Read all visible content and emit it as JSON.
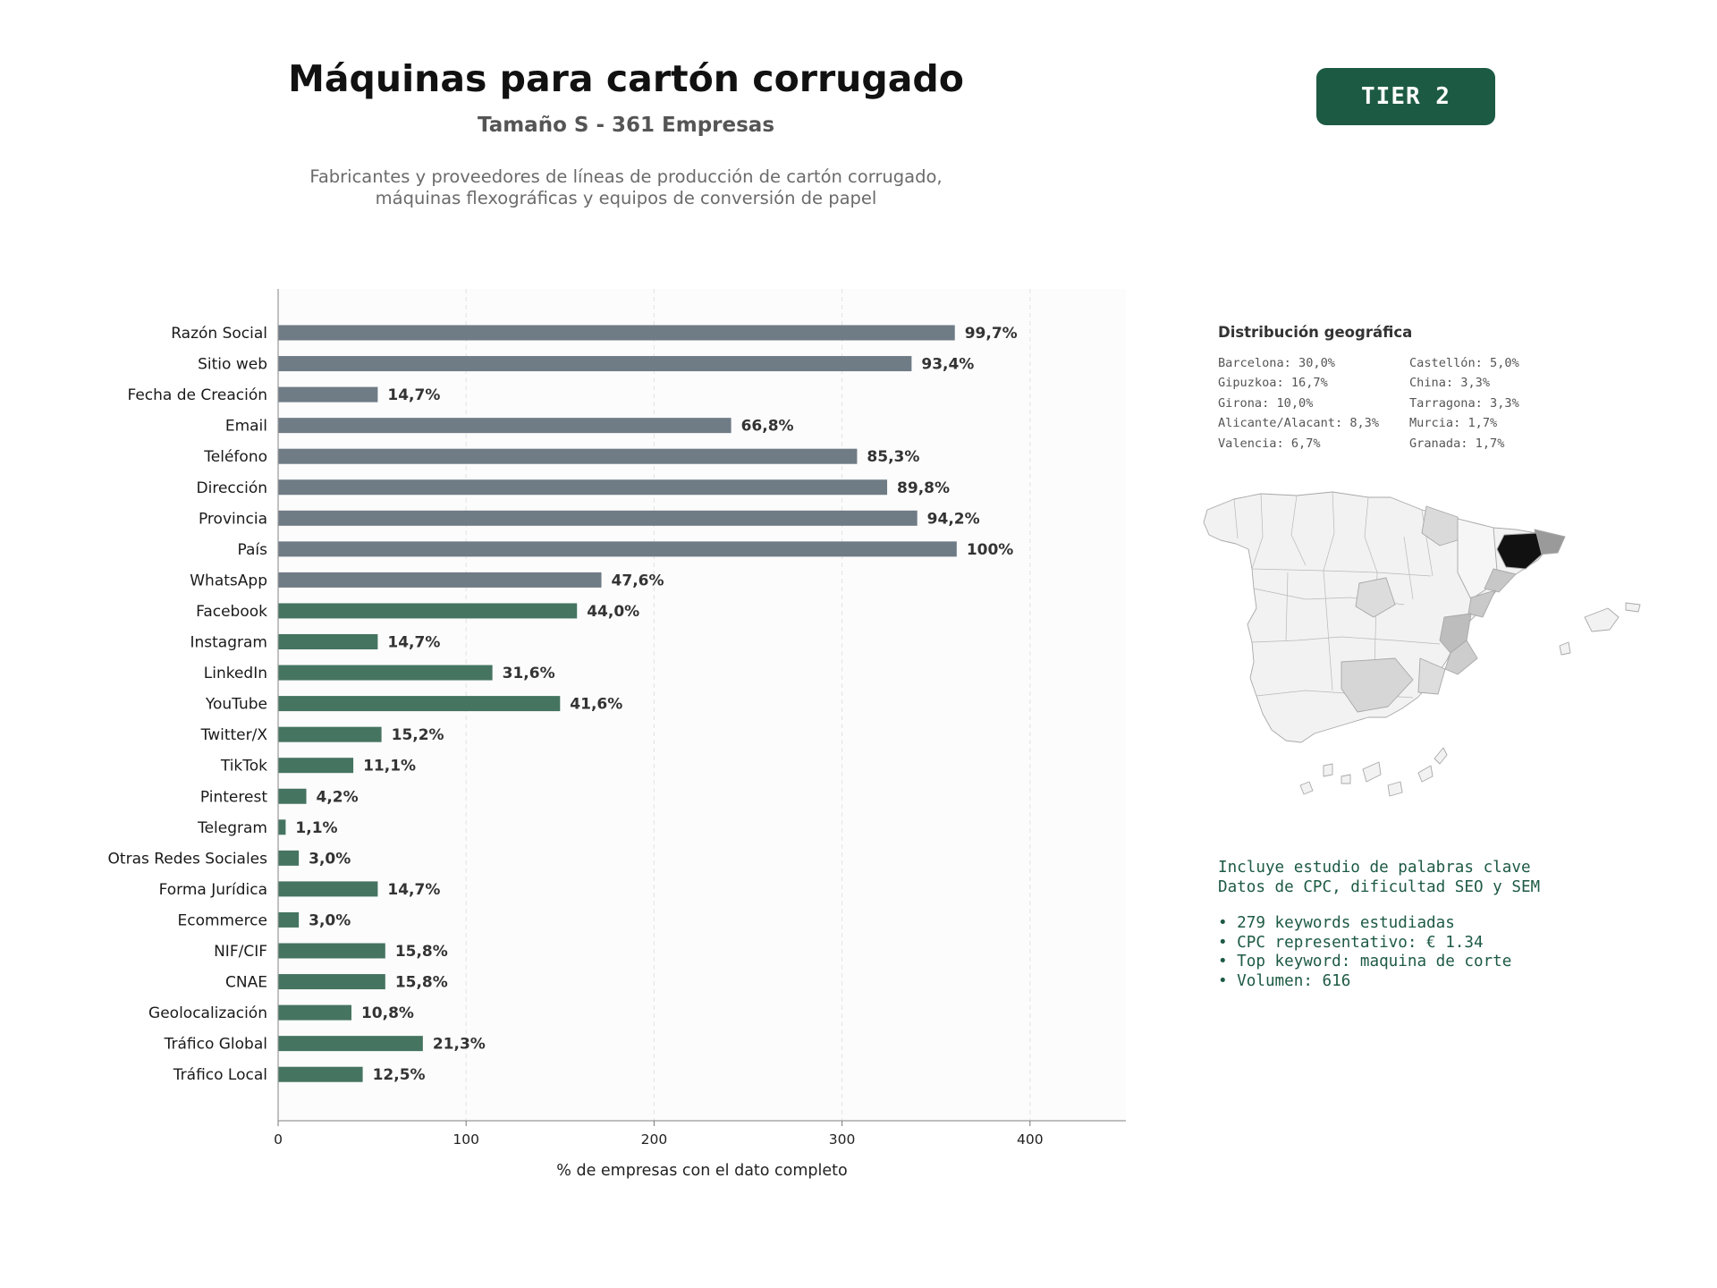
{
  "header": {
    "title": "Máquinas para cartón corrugado",
    "subtitle": "Tamaño S - 361 Empresas",
    "description_line1": "Fabricantes y proveedores de líneas de producción de cartón corrugado,",
    "description_line2": "máquinas flexográficas y equipos de conversión de papel",
    "tier_label": "TIER 2"
  },
  "colors": {
    "bar_basic": "#6f7b85",
    "bar_extended": "#457460",
    "accent": "#1d5a44",
    "plot_bg": "#fcfcfc"
  },
  "chart_data": {
    "type": "bar",
    "orientation": "horizontal",
    "categories": [
      "Razón Social",
      "Sitio web",
      "Fecha de Creación",
      "Email",
      "Teléfono",
      "Dirección",
      "Provincia",
      "País",
      "WhatsApp",
      "Facebook",
      "Instagram",
      "LinkedIn",
      "YouTube",
      "Twitter/X",
      "TikTok",
      "Pinterest",
      "Telegram",
      "Otras Redes Sociales",
      "Forma Jurídica",
      "Ecommerce",
      "NIF/CIF",
      "CNAE",
      "Geolocalización",
      "Tráfico Global",
      "Tráfico Local"
    ],
    "values": [
      360,
      337,
      53,
      241,
      308,
      324,
      340,
      361,
      172,
      159,
      53,
      114,
      150,
      55,
      40,
      15,
      4,
      11,
      53,
      11,
      57,
      57,
      39,
      77,
      45
    ],
    "value_labels": [
      "99,7%",
      "93,4%",
      "14,7%",
      "66,8%",
      "85,3%",
      "89,8%",
      "94,2%",
      "100%",
      "47,6%",
      "44,0%",
      "14,7%",
      "31,6%",
      "41,6%",
      "15,2%",
      "11,1%",
      "4,2%",
      "1,1%",
      "3,0%",
      "14,7%",
      "3,0%",
      "15,8%",
      "15,8%",
      "10,8%",
      "21,3%",
      "12,5%"
    ],
    "basic_field_count": 9,
    "xlabel": "% de empresas con el dato completo",
    "xticks": [
      0,
      100,
      200,
      300,
      400
    ],
    "xlim": [
      0,
      451
    ],
    "grid": "x-dashed"
  },
  "geo": {
    "title": "Distribución geográfica",
    "entries": [
      "Barcelona: 30,0%",
      "Castellón: 5,0%",
      "Gipuzkoa: 16,7%",
      "China: 3,3%",
      "Girona: 10,0%",
      "Tarragona: 3,3%",
      "Alicante/Alacant: 8,3%",
      "Murcia: 1,7%",
      "Valencia: 6,7%",
      "Granada: 1,7%"
    ]
  },
  "keywords": {
    "line1": "Incluye estudio de palabras clave",
    "line2": "Datos de CPC, dificultad SEO y SEM",
    "bullets": [
      "• 279 keywords estudiadas",
      "• CPC representativo: € 1.34",
      "• Top keyword: maquina de corte",
      "• Volumen: 616"
    ]
  }
}
